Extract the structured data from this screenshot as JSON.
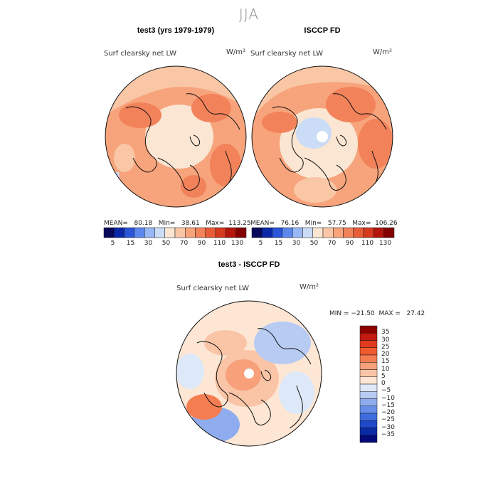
{
  "figure": {
    "season": "JJA",
    "panels": [
      {
        "title": "test3 (yrs 1979-1979)",
        "variable": "Surf clearsky net LW",
        "units": "W/m²",
        "stats": "MEAN=   80.18   Min=   38.61   Max=  113.25"
      },
      {
        "title": "ISCCP FD",
        "variable": "Surf clearsky net LW",
        "units": "W/m²",
        "stats": "MEAN=   76.16   Min=   57.75   Max=  106.26"
      },
      {
        "title": "test3 - ISCCP FD",
        "variable": "Surf clearsky net LW",
        "units": "W/m²",
        "stats": "MIN = −21.50  MAX =   27.42"
      }
    ],
    "abs_colorbar": {
      "ticks": [
        "5",
        "15",
        "30",
        "50",
        "70",
        "90",
        "110",
        "130"
      ],
      "colors": [
        "#08085a",
        "#0b28a8",
        "#2a55d8",
        "#5c88ee",
        "#97b8f4",
        "#cbdcf7",
        "#fbe5d3",
        "#f9c7a6",
        "#f7a47c",
        "#f2825a",
        "#e85c3a",
        "#d53a1e",
        "#b4160e",
        "#840000"
      ]
    },
    "diff_colorbar": {
      "ticks": [
        "35",
        "30",
        "25",
        "20",
        "15",
        "10",
        "5",
        "0",
        "−5",
        "−10",
        "−15",
        "−20",
        "−25",
        "−30",
        "−35"
      ],
      "colors": [
        "#8c0000",
        "#c41a10",
        "#e03a1e",
        "#ef5a2e",
        "#f47e52",
        "#f7a07a",
        "#fac4a6",
        "#fde7d4",
        "#dde8f8",
        "#b8ccf3",
        "#8fadee",
        "#678fe8",
        "#3f6de0",
        "#1f49c8",
        "#0a2aa8",
        "#040a78"
      ]
    }
  },
  "chart_data": [
    {
      "type": "heatmap",
      "projection": "north polar stereographic",
      "title": "test3 (yrs 1979-1979)",
      "variable": "Surf clearsky net LW",
      "units": "W/m²",
      "mean": 80.18,
      "min": 38.61,
      "max": 113.25,
      "color_levels": [
        5,
        15,
        30,
        50,
        70,
        90,
        110,
        130
      ]
    },
    {
      "type": "heatmap",
      "projection": "north polar stereographic",
      "title": "ISCCP FD",
      "variable": "Surf clearsky net LW",
      "units": "W/m²",
      "mean": 76.16,
      "min": 57.75,
      "max": 106.26,
      "color_levels": [
        5,
        15,
        30,
        50,
        70,
        90,
        110,
        130
      ]
    },
    {
      "type": "heatmap",
      "projection": "north polar stereographic",
      "title": "test3 - ISCCP FD",
      "variable": "Surf clearsky net LW",
      "units": "W/m²",
      "min": -21.5,
      "max": 27.42,
      "color_levels": [
        35,
        30,
        25,
        20,
        15,
        10,
        5,
        0,
        -5,
        -10,
        -15,
        -20,
        -25,
        -30,
        -35
      ]
    }
  ]
}
